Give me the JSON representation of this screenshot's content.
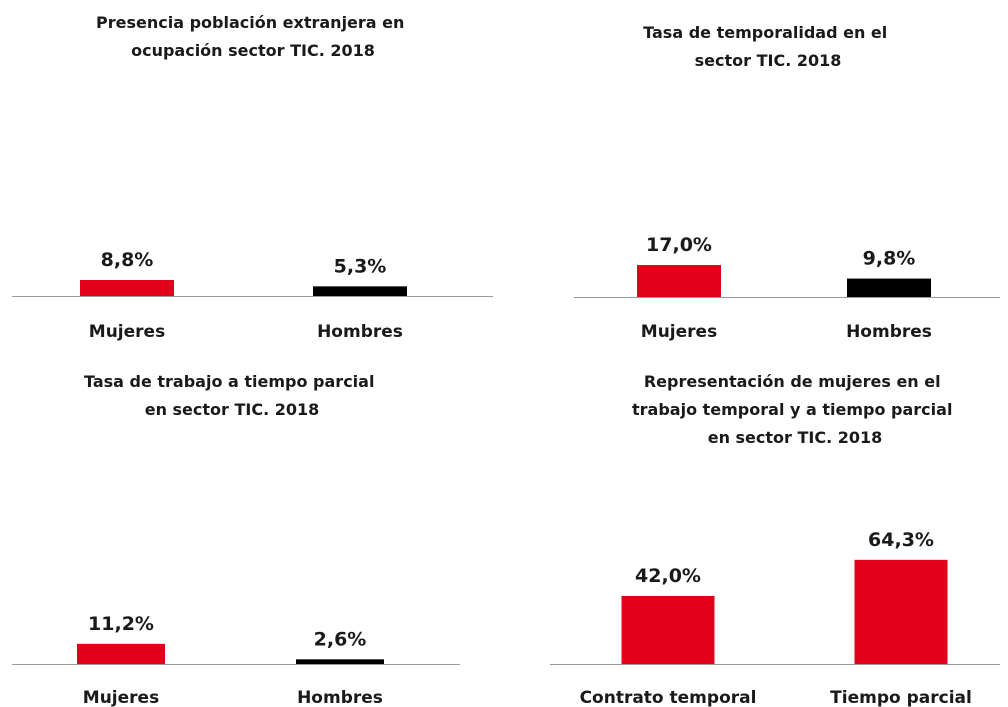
{
  "chart_data": [
    {
      "type": "bar",
      "title": "Presencia población extranjera en ocupación sector TIC. 2018",
      "categories": [
        "Mujeres",
        "Hombres"
      ],
      "values": [
        8.8,
        5.3
      ],
      "value_labels": [
        "8,8%",
        "5,3%"
      ],
      "colors": [
        "#e3001b",
        "#000000"
      ]
    },
    {
      "type": "bar",
      "title": "Tasa de temporalidad en el sector TIC. 2018",
      "categories": [
        "Mujeres",
        "Hombres"
      ],
      "values": [
        17.0,
        9.8
      ],
      "value_labels": [
        "17,0%",
        "9,8%"
      ],
      "colors": [
        "#e3001b",
        "#000000"
      ]
    },
    {
      "type": "bar",
      "title": "Tasa de trabajo a tiempo parcial en sector TIC. 2018",
      "categories": [
        "Mujeres",
        "Hombres"
      ],
      "values": [
        11.2,
        2.6
      ],
      "value_labels": [
        "11,2%",
        "2,6%"
      ],
      "colors": [
        "#e3001b",
        "#000000"
      ]
    },
    {
      "type": "bar",
      "title": "Representación de mujeres en el trabajo temporal y a tiempo parcial en sector TIC. 2018",
      "categories": [
        "Contrato temporal",
        "Tiempo parcial"
      ],
      "values": [
        42.0,
        64.3
      ],
      "value_labels": [
        "42,0%",
        "64,3%"
      ],
      "colors": [
        "#e3001b",
        "#e3001b"
      ]
    }
  ]
}
